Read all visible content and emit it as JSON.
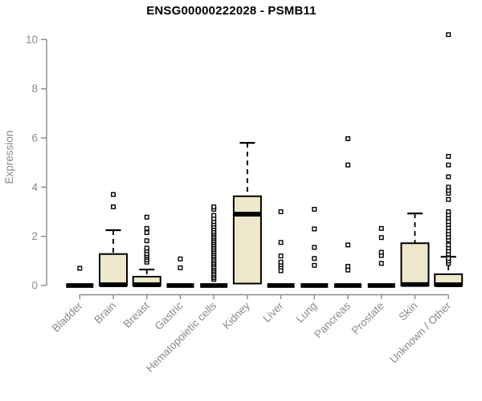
{
  "chart_data": {
    "type": "boxplot",
    "title": "ENSG00000222028 - PSMB11",
    "ylabel": "Expression",
    "xlabel": "",
    "ylim": [
      0,
      10
    ],
    "yticks": [
      0,
      2,
      4,
      6,
      8,
      10
    ],
    "grid": false,
    "legend": false,
    "categories": [
      "Bladder",
      "Brain",
      "Breast",
      "Gastric",
      "Hematopoietic cells",
      "Kidney",
      "Liver",
      "Lung",
      "Pancreas",
      "Prostate",
      "Skin",
      "Unknown / Other"
    ],
    "colors": {
      "box_fill": "#EDE7CB",
      "box_border": "#000000",
      "median": "#000000",
      "axis": "#8a8a8a",
      "outlier_fill": "#ffffff",
      "title": "#000000"
    },
    "groups": [
      {
        "label": "Bladder",
        "q1": 0,
        "median": 0,
        "q3": 0,
        "whisker_high": 0,
        "outliers": [
          0.7
        ]
      },
      {
        "label": "Brain",
        "q1": 0,
        "median": 0.03,
        "q3": 1.28,
        "whisker_high": 2.25,
        "outliers": [
          3.2,
          3.7
        ]
      },
      {
        "label": "Breast",
        "q1": 0,
        "median": 0.03,
        "q3": 0.36,
        "whisker_high": 0.65,
        "outliers": [
          0.95,
          1.05,
          1.15,
          1.22,
          1.3,
          1.42,
          1.52,
          1.82,
          2.15,
          2.32,
          2.78
        ]
      },
      {
        "label": "Gastric",
        "q1": 0,
        "median": 0,
        "q3": 0,
        "whisker_high": 0,
        "outliers": [
          0.72,
          1.08
        ]
      },
      {
        "label": "Hematopoietic cells",
        "q1": 0,
        "median": 0,
        "q3": 0,
        "whisker_high": 0,
        "outliers": [
          0.25,
          0.32,
          0.4,
          0.47,
          0.55,
          0.62,
          0.7,
          0.77,
          0.85,
          0.92,
          1.0,
          1.07,
          1.15,
          1.22,
          1.3,
          1.37,
          1.45,
          1.52,
          1.6,
          1.67,
          1.75,
          1.82,
          1.9,
          1.97,
          2.05,
          2.12,
          2.2,
          2.3,
          2.4,
          2.5,
          2.6,
          2.72,
          2.85,
          3.1,
          3.2
        ]
      },
      {
        "label": "Kidney",
        "q1": 0.08,
        "median": 2.9,
        "q3": 3.63,
        "whisker_high": 5.8,
        "outliers": []
      },
      {
        "label": "Liver",
        "q1": 0,
        "median": 0,
        "q3": 0,
        "whisker_high": 0,
        "outliers": [
          0.6,
          0.75,
          0.85,
          0.95,
          1.2,
          1.75,
          3.0
        ]
      },
      {
        "label": "Lung",
        "q1": 0,
        "median": 0,
        "q3": 0,
        "whisker_high": 0,
        "outliers": [
          0.82,
          1.1,
          1.55,
          2.3,
          3.1
        ]
      },
      {
        "label": "Pancreas",
        "q1": 0,
        "median": 0,
        "q3": 0,
        "whisker_high": 0,
        "outliers": [
          0.63,
          0.78,
          1.65,
          4.9,
          5.97
        ]
      },
      {
        "label": "Prostate",
        "q1": 0,
        "median": 0,
        "q3": 0,
        "whisker_high": 0,
        "outliers": [
          0.9,
          1.22,
          1.35,
          1.95,
          2.32
        ]
      },
      {
        "label": "Skin",
        "q1": 0,
        "median": 0.04,
        "q3": 1.72,
        "whisker_high": 2.93,
        "outliers": []
      },
      {
        "label": "Unknown / Other",
        "q1": 0,
        "median": 0.03,
        "q3": 0.46,
        "whisker_high": 1.17,
        "outliers": [
          0.9,
          1.0,
          1.1,
          1.28,
          1.4,
          1.53,
          1.65,
          1.85,
          1.97,
          2.1,
          2.22,
          2.35,
          2.48,
          2.6,
          2.75,
          2.87,
          3.0,
          3.5,
          3.75,
          3.87,
          4.0,
          4.42,
          4.9,
          5.25,
          10.2
        ]
      }
    ]
  }
}
